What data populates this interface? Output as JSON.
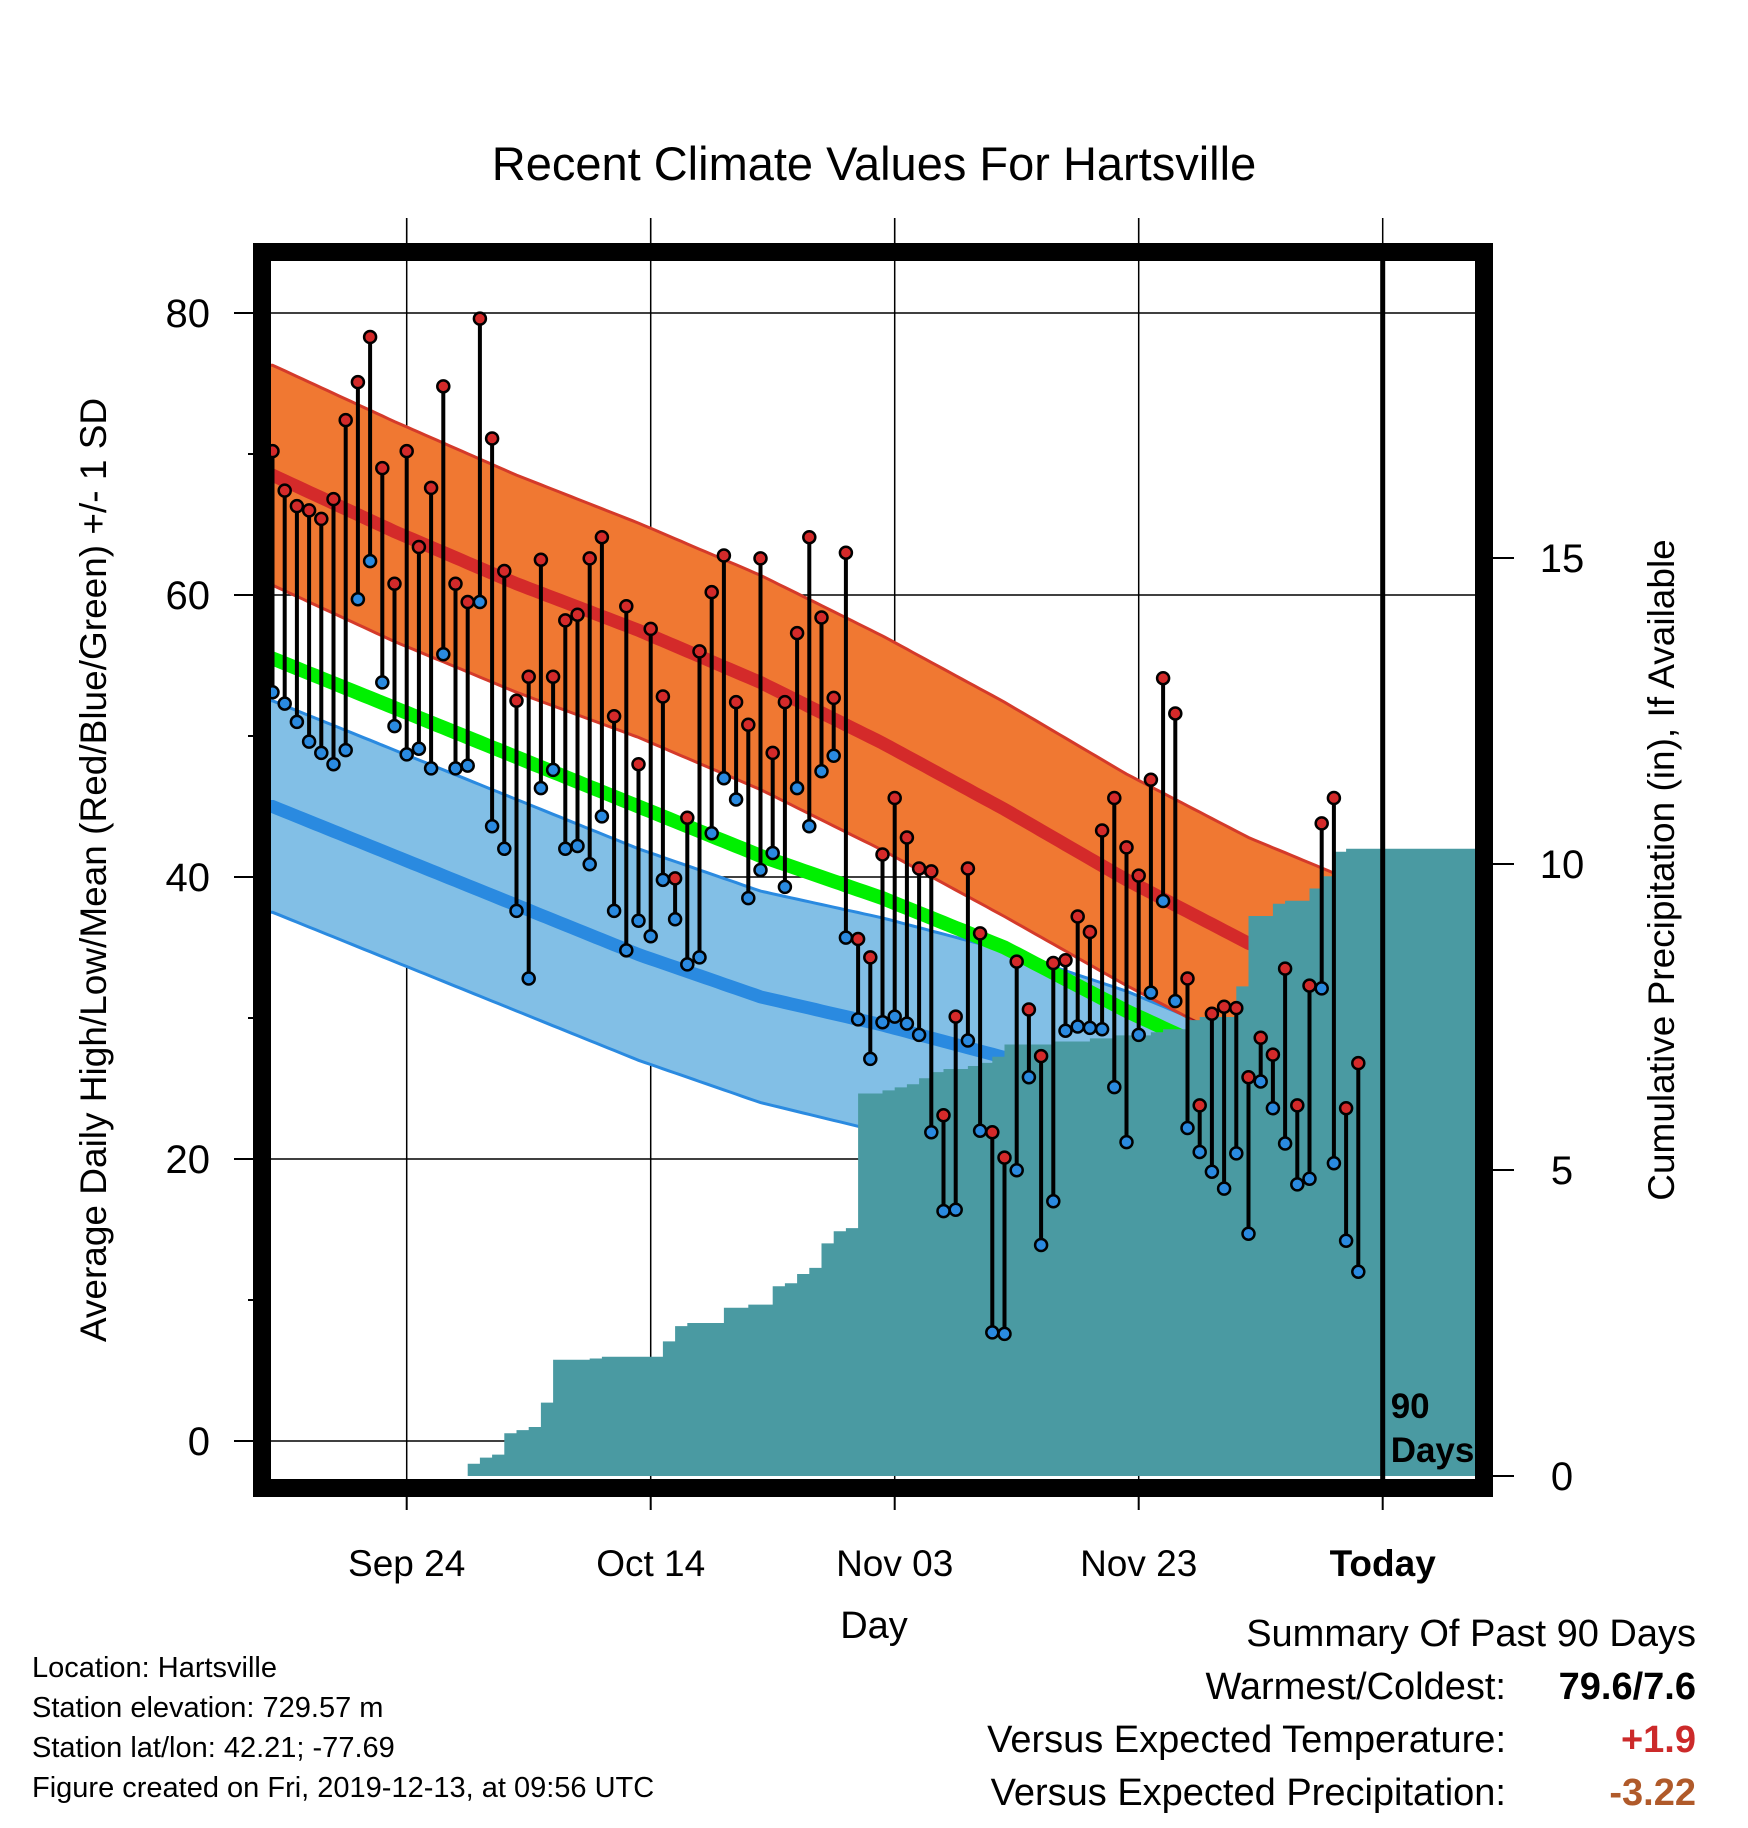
{
  "chart_data": {
    "type": "line",
    "title": "Recent Climate Values For Hartsville",
    "xlabel": "Day",
    "ylabel": "Average Daily High/Low/Mean (Red/Blue/Green) +/- 1 SD",
    "y2label": "Cumulative Precipitation (in), If Available",
    "ylim": [
      -2,
      82
    ],
    "y2lim": [
      0,
      20
    ],
    "y_ticks": [
      "0",
      "20",
      "40",
      "60",
      "80"
    ],
    "y2_ticks": [
      "0",
      "5",
      "10",
      "15"
    ],
    "x_ticks": [
      {
        "day": 11,
        "label": "Sep 24"
      },
      {
        "day": 31,
        "label": "Oct 14"
      },
      {
        "day": 51,
        "label": "Nov 03"
      },
      {
        "day": 71,
        "label": "Nov 23"
      },
      {
        "day": 91,
        "label": "Today"
      }
    ],
    "today_marker": {
      "day": 91,
      "label_line1": "90",
      "label_line2": "Days"
    },
    "normals": {
      "days": [
        0,
        10,
        20,
        30,
        40,
        50,
        60,
        70,
        80,
        90,
        100
      ],
      "high_mean": [
        68.5,
        64.5,
        60.8,
        57.5,
        53.8,
        49.5,
        44.8,
        39.8,
        35.3,
        32.0,
        29.8
      ],
      "high_sd": [
        7.8,
        7.8,
        7.7,
        7.6,
        7.6,
        7.6,
        7.6,
        7.5,
        7.5,
        7.2,
        7.0
      ],
      "low_mean": [
        45.0,
        41.5,
        38.0,
        34.5,
        31.5,
        29.5,
        27.2,
        24.2,
        20.5,
        17.2,
        13.8
      ],
      "low_sd": [
        7.5,
        7.5,
        7.5,
        7.5,
        7.5,
        7.6,
        7.6,
        7.7,
        7.8,
        7.9,
        7.8
      ],
      "mean_temp": [
        55.5,
        52.0,
        48.5,
        45.0,
        41.5,
        38.5,
        35.0,
        30.5,
        26.5,
        23.5,
        21.3
      ]
    },
    "series": [
      {
        "name": "High",
        "color": "#d42a2a",
        "values": [
          70.2,
          67.4,
          66.3,
          66.0,
          65.4,
          66.8,
          72.4,
          75.1,
          78.3,
          69.0,
          60.8,
          70.2,
          63.4,
          67.6,
          74.8,
          60.8,
          59.5,
          79.6,
          71.1,
          61.7,
          52.5,
          54.2,
          62.5,
          54.2,
          58.2,
          58.6,
          62.6,
          64.1,
          51.4,
          59.2,
          48.0,
          57.6,
          52.8,
          39.9,
          44.2,
          56.0,
          60.2,
          62.8,
          52.4,
          50.8,
          62.6,
          48.8,
          52.4,
          57.3,
          64.1,
          58.4,
          52.7,
          63.0,
          35.6,
          34.3,
          41.6,
          45.6,
          42.8,
          40.6,
          40.4,
          23.1,
          30.1,
          40.6,
          36.0,
          21.9,
          20.1,
          34.0,
          30.6,
          27.3,
          33.9,
          34.1,
          37.2,
          36.1,
          43.3,
          45.6,
          42.1,
          40.1,
          46.9,
          54.1,
          51.6,
          32.8,
          23.8,
          30.3,
          30.8,
          30.7,
          25.8,
          28.6,
          27.4,
          33.5,
          23.8,
          32.3,
          43.8,
          45.6,
          23.6,
          26.8
        ]
      },
      {
        "name": "Low",
        "color": "#2a8ae0",
        "values": [
          53.1,
          52.3,
          51.0,
          49.6,
          48.8,
          48.0,
          49.0,
          59.7,
          62.4,
          53.8,
          50.7,
          48.7,
          49.1,
          47.7,
          55.8,
          47.7,
          47.9,
          59.5,
          43.6,
          42.0,
          37.6,
          32.8,
          46.3,
          47.6,
          42.0,
          42.2,
          40.9,
          44.3,
          37.6,
          34.8,
          36.9,
          35.8,
          39.8,
          37.0,
          33.8,
          34.3,
          43.1,
          47.0,
          45.5,
          38.5,
          40.5,
          41.7,
          39.3,
          46.3,
          43.6,
          47.5,
          48.6,
          35.7,
          29.9,
          27.1,
          29.7,
          30.1,
          29.6,
          28.8,
          21.9,
          16.3,
          16.4,
          28.4,
          22.0,
          7.7,
          7.6,
          19.2,
          25.8,
          13.9,
          17.0,
          29.1,
          29.4,
          29.3,
          29.2,
          25.1,
          21.2,
          28.8,
          31.8,
          38.3,
          31.2,
          22.2,
          20.5,
          19.1,
          17.9,
          20.4,
          14.7,
          25.5,
          23.6,
          21.1,
          18.2,
          18.6,
          32.1,
          19.7,
          14.2,
          12.0
        ]
      }
    ],
    "precipitation": {
      "name": "Cumulative Precipitation",
      "color": "#4a9aa2",
      "days": [
        0,
        15,
        16,
        17,
        18,
        19,
        20,
        21,
        22,
        23,
        24,
        25,
        26,
        27,
        28,
        29,
        30,
        31,
        32,
        33,
        34,
        35,
        36,
        37,
        38,
        39,
        40,
        41,
        42,
        43,
        44,
        45,
        46,
        47,
        48,
        49,
        50,
        51,
        52,
        53,
        54,
        55,
        56,
        57,
        58,
        59,
        60,
        61,
        62,
        63,
        64,
        65,
        66,
        67,
        68,
        69,
        70,
        71,
        72,
        73,
        74,
        75,
        76,
        77,
        78,
        79,
        80,
        81,
        82,
        83,
        84,
        85,
        86,
        87,
        88,
        89,
        90,
        91,
        100
      ],
      "values": [
        0,
        0,
        0.2,
        0.3,
        0.35,
        0.7,
        0.75,
        0.8,
        1.2,
        1.9,
        1.9,
        1.9,
        1.92,
        1.95,
        1.95,
        1.95,
        1.95,
        1.95,
        2.2,
        2.45,
        2.5,
        2.5,
        2.5,
        2.75,
        2.75,
        2.8,
        2.8,
        3.1,
        3.15,
        3.3,
        3.4,
        3.8,
        4.0,
        4.05,
        6.25,
        6.25,
        6.3,
        6.35,
        6.4,
        6.5,
        6.6,
        6.65,
        6.65,
        6.7,
        6.75,
        6.85,
        7.05,
        7.05,
        7.05,
        7.05,
        7.1,
        7.1,
        7.1,
        7.15,
        7.15,
        7.2,
        7.2,
        7.2,
        7.25,
        7.3,
        7.3,
        7.45,
        7.5,
        7.5,
        7.5,
        8.0,
        9.15,
        9.15,
        9.35,
        9.4,
        9.4,
        9.6,
        9.8,
        10.2,
        10.25,
        10.25,
        10.25,
        10.25,
        10.25
      ]
    }
  },
  "info": {
    "location": "Location: Hartsville",
    "elevation": "Station elevation: 729.57 m",
    "latlon": "Station lat/lon: 42.21; -77.69",
    "created": "Figure created on Fri, 2019-12-13, at 09:56 UTC"
  },
  "summary": {
    "heading": "Summary Of Past 90 Days",
    "warmest_label": "Warmest/Coldest:",
    "warmest_value": "79.6/7.6",
    "temp_label": "Versus Expected Temperature:",
    "temp_value": "+1.9",
    "precip_label": "Versus Expected Precipitation:",
    "precip_value": "-3.22"
  },
  "colors": {
    "high_band": "#f07832",
    "high_band_edge": "#d43a2a",
    "high_mean_line": "#d42a2a",
    "low_band": "#82bfe6",
    "low_band_edge": "#2a8ae0",
    "low_mean_line": "#2a8ae0",
    "mean_line": "#00f000",
    "overlap": "#961418",
    "precip": "#4a9aa2",
    "temp_value": "#cc2a2a",
    "precip_value": "#b05a2a"
  }
}
